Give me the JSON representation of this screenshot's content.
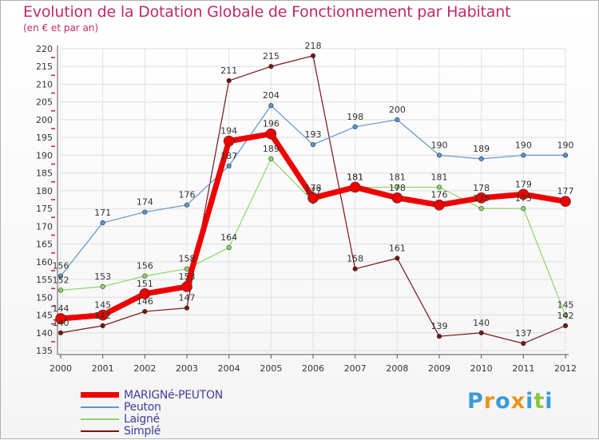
{
  "chart_data": {
    "type": "line",
    "title": "Evolution de la Dotation Globale de Fonctionnement par Habitant",
    "subtitle": "(en € et par an)",
    "xlabel": "",
    "ylabel": "",
    "ylim": [
      135,
      220
    ],
    "yticks": [
      135,
      140,
      145,
      150,
      155,
      160,
      165,
      170,
      175,
      180,
      185,
      190,
      195,
      200,
      205,
      210,
      215,
      220
    ],
    "grid": true,
    "legend_position": "bottom-left",
    "categories": [
      "2000",
      "2001",
      "2002",
      "2003",
      "2004",
      "2005",
      "2006",
      "2007",
      "2008",
      "2009",
      "2010",
      "2011",
      "2012"
    ],
    "series": [
      {
        "name": "Simplé",
        "color": "#7a1414",
        "width": 1.2,
        "marker": 2.8,
        "values": [
          140,
          142,
          146,
          147,
          211,
          215,
          218,
          158,
          161,
          139,
          140,
          137,
          142
        ]
      },
      {
        "name": "Laigné",
        "color": "#8fd46a",
        "width": 1.2,
        "marker": 2.8,
        "values": [
          152,
          153,
          156,
          158,
          164,
          189,
          177,
          181,
          181,
          181,
          175,
          175,
          145
        ]
      },
      {
        "name": "Peuton",
        "color": "#5e93cf",
        "width": 1.2,
        "marker": 2.8,
        "values": [
          156,
          171,
          174,
          176,
          187,
          204,
          193,
          198,
          200,
          190,
          189,
          190,
          190
        ]
      },
      {
        "name": "MARIGNé-PEUTON",
        "color": "#ee0000",
        "width": 7,
        "marker": 6.5,
        "values": [
          144,
          145,
          151,
          153,
          194,
          196,
          178,
          181,
          178,
          176,
          178,
          179,
          177
        ]
      }
    ]
  },
  "legend": [
    {
      "label": "MARIGNé-PEUTON",
      "color": "#ee0000",
      "thickness": 7
    },
    {
      "label": "Peuton",
      "color": "#5e93cf",
      "thickness": 2
    },
    {
      "label": "Laigné",
      "color": "#8fd46a",
      "thickness": 2
    },
    {
      "label": "Simplé",
      "color": "#7a1414",
      "thickness": 2
    }
  ],
  "brand": {
    "letters": [
      "P",
      "r",
      "o",
      "x",
      "i",
      "t",
      "i"
    ],
    "colors": [
      "#3a9ad9",
      "#e8951a",
      "#3a9ad9",
      "#e8951a",
      "#3a9ad9",
      "#8cc63f",
      "#3a9ad9"
    ]
  }
}
